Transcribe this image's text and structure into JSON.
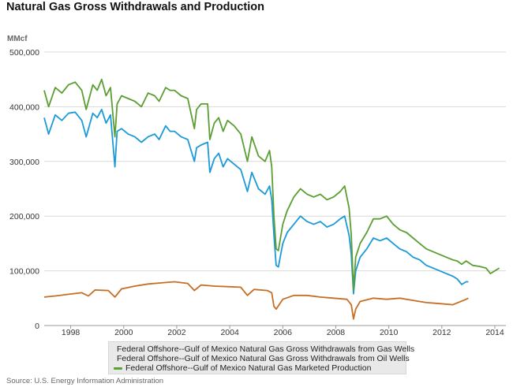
{
  "title": "Natural Gas Gross Withdrawals and Production",
  "unit_label": "MMcf",
  "source": "Source: U.S. Energy Information Administration",
  "colors": {
    "gas_wells": "#1b9ad8",
    "oil_wells": "#c66e24",
    "marketed": "#5b9e32",
    "grid": "#d9d9d9"
  },
  "chart_data": {
    "type": "line",
    "title": "Natural Gas Gross Withdrawals and Production",
    "ylabel": "MMcf",
    "xlabel": "",
    "xlim": [
      "1997-01",
      "2014-06"
    ],
    "ylim": [
      0,
      500000
    ],
    "y_ticks": [
      "0",
      "100,000",
      "200,000",
      "300,000",
      "400,000",
      "500,000"
    ],
    "y_tick_values": [
      0,
      100000,
      200000,
      300000,
      400000,
      500000
    ],
    "x_ticks": [
      "1998",
      "2000",
      "2002",
      "2004",
      "2006",
      "2008",
      "2010",
      "2012",
      "2014"
    ],
    "grid": true,
    "legend_position": "bottom",
    "series": [
      {
        "name": "Federal Offshore--Gulf of Mexico Natural Gas Gross Withdrawals from Gas Wells",
        "color": "#1b9ad8",
        "points": [
          [
            "1997-01",
            380000
          ],
          [
            "1997-03",
            350000
          ],
          [
            "1997-06",
            385000
          ],
          [
            "1997-09",
            375000
          ],
          [
            "1997-12",
            388000
          ],
          [
            "1998-03",
            390000
          ],
          [
            "1998-06",
            375000
          ],
          [
            "1998-08",
            345000
          ],
          [
            "1998-11",
            388000
          ],
          [
            "1999-01",
            380000
          ],
          [
            "1999-03",
            395000
          ],
          [
            "1999-05",
            370000
          ],
          [
            "1999-07",
            385000
          ],
          [
            "1999-09",
            290000
          ],
          [
            "1999-10",
            355000
          ],
          [
            "1999-12",
            360000
          ],
          [
            "2000-03",
            350000
          ],
          [
            "2000-06",
            345000
          ],
          [
            "2000-09",
            335000
          ],
          [
            "2000-12",
            345000
          ],
          [
            "2001-03",
            350000
          ],
          [
            "2001-05",
            340000
          ],
          [
            "2001-08",
            365000
          ],
          [
            "2001-10",
            355000
          ],
          [
            "2001-12",
            355000
          ],
          [
            "2002-03",
            345000
          ],
          [
            "2002-06",
            340000
          ],
          [
            "2002-09",
            300000
          ],
          [
            "2002-10",
            325000
          ],
          [
            "2002-12",
            330000
          ],
          [
            "2003-03",
            335000
          ],
          [
            "2003-04",
            280000
          ],
          [
            "2003-06",
            305000
          ],
          [
            "2003-08",
            315000
          ],
          [
            "2003-10",
            290000
          ],
          [
            "2003-12",
            305000
          ],
          [
            "2004-03",
            295000
          ],
          [
            "2004-06",
            285000
          ],
          [
            "2004-09",
            245000
          ],
          [
            "2004-11",
            280000
          ],
          [
            "2005-02",
            250000
          ],
          [
            "2005-05",
            240000
          ],
          [
            "2005-07",
            255000
          ],
          [
            "2005-08",
            230000
          ],
          [
            "2005-09",
            165000
          ],
          [
            "2005-10",
            110000
          ],
          [
            "2005-11",
            107000
          ],
          [
            "2006-01",
            150000
          ],
          [
            "2006-03",
            170000
          ],
          [
            "2006-06",
            185000
          ],
          [
            "2006-09",
            200000
          ],
          [
            "2006-12",
            190000
          ],
          [
            "2007-03",
            185000
          ],
          [
            "2007-06",
            190000
          ],
          [
            "2007-09",
            180000
          ],
          [
            "2007-12",
            185000
          ],
          [
            "2008-03",
            195000
          ],
          [
            "2008-05",
            200000
          ],
          [
            "2008-07",
            165000
          ],
          [
            "2008-08",
            130000
          ],
          [
            "2008-09",
            58000
          ],
          [
            "2008-10",
            100000
          ],
          [
            "2008-12",
            125000
          ],
          [
            "2009-03",
            140000
          ],
          [
            "2009-06",
            160000
          ],
          [
            "2009-09",
            155000
          ],
          [
            "2009-12",
            160000
          ],
          [
            "2010-03",
            150000
          ],
          [
            "2010-06",
            140000
          ],
          [
            "2010-09",
            135000
          ],
          [
            "2010-12",
            125000
          ],
          [
            "2011-03",
            120000
          ],
          [
            "2011-06",
            110000
          ],
          [
            "2011-09",
            105000
          ],
          [
            "2011-12",
            100000
          ],
          [
            "2012-03",
            95000
          ],
          [
            "2012-06",
            90000
          ],
          [
            "2012-08",
            85000
          ],
          [
            "2012-10",
            75000
          ],
          [
            "2012-12",
            80000
          ],
          [
            "2013-01",
            80000
          ]
        ]
      },
      {
        "name": "Federal Offshore--Gulf of Mexico Natural Gas Gross Withdrawals from Oil Wells",
        "color": "#c66e24",
        "points": [
          [
            "1997-01",
            52000
          ],
          [
            "1997-06",
            54000
          ],
          [
            "1997-12",
            57000
          ],
          [
            "1998-06",
            60000
          ],
          [
            "1998-09",
            54000
          ],
          [
            "1998-12",
            65000
          ],
          [
            "1999-06",
            64000
          ],
          [
            "1999-09",
            52000
          ],
          [
            "1999-12",
            67000
          ],
          [
            "2000-06",
            72000
          ],
          [
            "2000-12",
            76000
          ],
          [
            "2001-06",
            78000
          ],
          [
            "2001-12",
            80000
          ],
          [
            "2002-06",
            77000
          ],
          [
            "2002-09",
            64000
          ],
          [
            "2002-12",
            74000
          ],
          [
            "2003-06",
            72000
          ],
          [
            "2003-12",
            71000
          ],
          [
            "2004-06",
            70000
          ],
          [
            "2004-09",
            55000
          ],
          [
            "2004-12",
            66000
          ],
          [
            "2005-06",
            64000
          ],
          [
            "2005-08",
            60000
          ],
          [
            "2005-09",
            35000
          ],
          [
            "2005-10",
            30000
          ],
          [
            "2006-01",
            48000
          ],
          [
            "2006-06",
            55000
          ],
          [
            "2006-12",
            55000
          ],
          [
            "2007-06",
            52000
          ],
          [
            "2007-12",
            50000
          ],
          [
            "2008-06",
            48000
          ],
          [
            "2008-08",
            38000
          ],
          [
            "2008-09",
            12000
          ],
          [
            "2008-10",
            30000
          ],
          [
            "2008-12",
            44000
          ],
          [
            "2009-06",
            50000
          ],
          [
            "2009-12",
            48000
          ],
          [
            "2010-06",
            50000
          ],
          [
            "2010-12",
            46000
          ],
          [
            "2011-06",
            42000
          ],
          [
            "2011-12",
            40000
          ],
          [
            "2012-06",
            38000
          ],
          [
            "2012-12",
            48000
          ],
          [
            "2013-01",
            50000
          ]
        ]
      },
      {
        "name": "Federal Offshore--Gulf of Mexico Natural Gas Marketed Production",
        "color": "#5b9e32",
        "points": [
          [
            "1997-01",
            430000
          ],
          [
            "1997-03",
            400000
          ],
          [
            "1997-06",
            435000
          ],
          [
            "1997-09",
            425000
          ],
          [
            "1997-12",
            440000
          ],
          [
            "1998-03",
            445000
          ],
          [
            "1998-06",
            430000
          ],
          [
            "1998-08",
            395000
          ],
          [
            "1998-11",
            440000
          ],
          [
            "1999-01",
            430000
          ],
          [
            "1999-03",
            450000
          ],
          [
            "1999-05",
            420000
          ],
          [
            "1999-07",
            435000
          ],
          [
            "1999-09",
            345000
          ],
          [
            "1999-10",
            405000
          ],
          [
            "1999-12",
            420000
          ],
          [
            "2000-03",
            415000
          ],
          [
            "2000-06",
            410000
          ],
          [
            "2000-09",
            400000
          ],
          [
            "2000-12",
            425000
          ],
          [
            "2001-03",
            420000
          ],
          [
            "2001-05",
            410000
          ],
          [
            "2001-08",
            435000
          ],
          [
            "2001-10",
            430000
          ],
          [
            "2001-12",
            430000
          ],
          [
            "2002-03",
            420000
          ],
          [
            "2002-06",
            415000
          ],
          [
            "2002-09",
            360000
          ],
          [
            "2002-10",
            395000
          ],
          [
            "2002-12",
            405000
          ],
          [
            "2003-03",
            405000
          ],
          [
            "2003-04",
            340000
          ],
          [
            "2003-06",
            370000
          ],
          [
            "2003-08",
            380000
          ],
          [
            "2003-10",
            355000
          ],
          [
            "2003-12",
            375000
          ],
          [
            "2004-03",
            365000
          ],
          [
            "2004-06",
            350000
          ],
          [
            "2004-09",
            300000
          ],
          [
            "2004-11",
            345000
          ],
          [
            "2005-02",
            310000
          ],
          [
            "2005-05",
            300000
          ],
          [
            "2005-07",
            320000
          ],
          [
            "2005-08",
            290000
          ],
          [
            "2005-09",
            200000
          ],
          [
            "2005-10",
            140000
          ],
          [
            "2005-11",
            137000
          ],
          [
            "2006-01",
            185000
          ],
          [
            "2006-03",
            210000
          ],
          [
            "2006-06",
            235000
          ],
          [
            "2006-09",
            250000
          ],
          [
            "2006-12",
            240000
          ],
          [
            "2007-03",
            235000
          ],
          [
            "2007-06",
            240000
          ],
          [
            "2007-09",
            230000
          ],
          [
            "2007-12",
            235000
          ],
          [
            "2008-03",
            245000
          ],
          [
            "2008-05",
            255000
          ],
          [
            "2008-07",
            215000
          ],
          [
            "2008-08",
            165000
          ],
          [
            "2008-09",
            65000
          ],
          [
            "2008-10",
            125000
          ],
          [
            "2008-12",
            150000
          ],
          [
            "2009-03",
            170000
          ],
          [
            "2009-06",
            195000
          ],
          [
            "2009-09",
            195000
          ],
          [
            "2009-12",
            200000
          ],
          [
            "2010-03",
            185000
          ],
          [
            "2010-06",
            175000
          ],
          [
            "2010-09",
            170000
          ],
          [
            "2010-12",
            160000
          ],
          [
            "2011-03",
            150000
          ],
          [
            "2011-06",
            140000
          ],
          [
            "2011-09",
            135000
          ],
          [
            "2011-12",
            130000
          ],
          [
            "2012-03",
            125000
          ],
          [
            "2012-06",
            120000
          ],
          [
            "2012-08",
            118000
          ],
          [
            "2012-10",
            112000
          ],
          [
            "2012-12",
            118000
          ],
          [
            "2013-03",
            110000
          ],
          [
            "2013-06",
            108000
          ],
          [
            "2013-09",
            105000
          ],
          [
            "2013-11",
            95000
          ],
          [
            "2014-01",
            100000
          ],
          [
            "2014-03",
            105000
          ]
        ]
      }
    ]
  }
}
